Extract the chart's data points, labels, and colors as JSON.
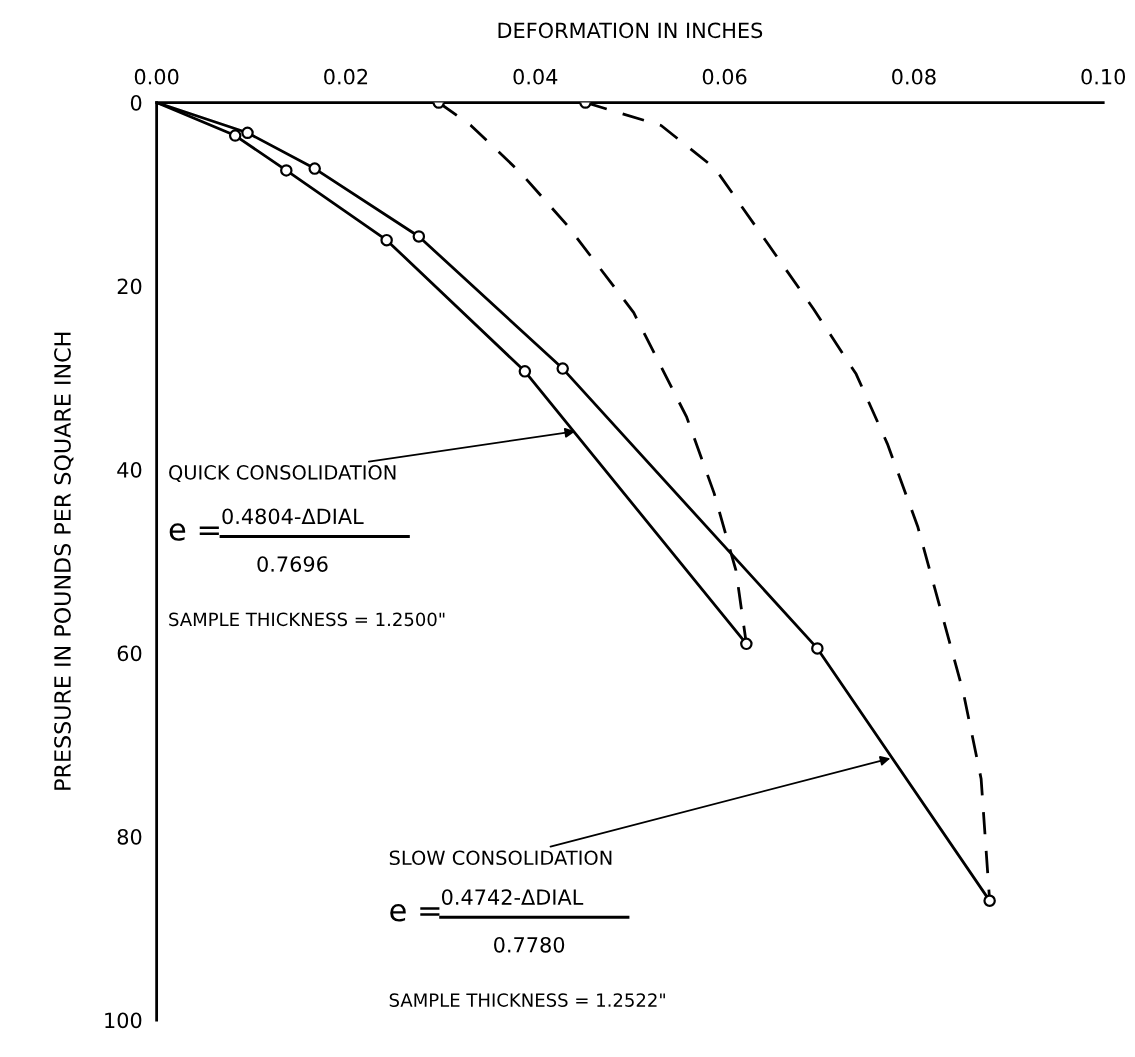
{
  "chart_data": {
    "type": "line",
    "xlabel": "DEFORMATION IN INCHES",
    "ylabel": "PRESSURE IN POUNDS PER SQUARE INCH",
    "xlim": [
      0,
      0.1
    ],
    "ylim": [
      100,
      0
    ],
    "xticks": [
      {
        "value": 0,
        "label": "0.00"
      },
      {
        "value": 0.02,
        "label": "0.02"
      },
      {
        "value": 0.04,
        "label": "0.04"
      },
      {
        "value": 0.06,
        "label": "0.06"
      },
      {
        "value": 0.08,
        "label": "0.08"
      },
      {
        "value": 0.1,
        "label": "0.10"
      }
    ],
    "yticks": [
      0,
      20,
      40,
      60,
      80,
      100
    ],
    "grid": false,
    "legend": false,
    "series": [
      {
        "color": "#000000",
        "line_style": "solid",
        "marker": "none",
        "x": [
          0,
          0.0083,
          0.0137,
          0.0243,
          0.0389,
          0.0623
        ],
        "values": [
          0,
          3.6,
          7.4,
          15.0,
          29.3,
          59
        ]
      },
      {
        "color": "#000000",
        "line_style": "solid",
        "marker": "none",
        "x": [
          0,
          0.0096,
          0.0167,
          0.0277,
          0.0429,
          0.0698,
          0.088
        ],
        "values": [
          0,
          3.3,
          7.2,
          14.6,
          29.0,
          59.5,
          87
        ]
      },
      {
        "color": "#000000",
        "line_style": "dashed",
        "marker": "none",
        "x": [
          0.0298,
          0.0332,
          0.0384,
          0.0434,
          0.0504,
          0.056,
          0.0589,
          0.0612,
          0.0623
        ],
        "values": [
          0,
          2.5,
          7.6,
          13.4,
          22.9,
          34.3,
          42.6,
          51,
          59
        ]
      },
      {
        "color": "#000000",
        "line_style": "dashed",
        "marker": "none",
        "x": [
          0.0453,
          0.0533,
          0.059,
          0.0694,
          0.0739,
          0.0772,
          0.0804,
          0.0827,
          0.0852,
          0.0871,
          0.088
        ],
        "values": [
          0,
          2.5,
          7.2,
          22.5,
          29.6,
          37.2,
          46.2,
          54.8,
          64.2,
          73.7,
          87
        ]
      },
      {
        "type": "scatter",
        "color": "#000000",
        "marker": "circle",
        "x": [
          0.0083,
          0.0137,
          0.0243,
          0.0389,
          0.0623,
          0.0096,
          0.0167,
          0.0277,
          0.0429,
          0.0698,
          0.088,
          0.0298,
          0.0453
        ],
        "values": [
          3.6,
          7.4,
          15.0,
          29.3,
          59,
          3.3,
          7.2,
          14.6,
          29.0,
          59.5,
          87,
          0,
          0
        ]
      }
    ],
    "annotations": [
      {
        "text": "QUICK CONSOLIDATION",
        "x": 0.0445,
        "y": 35.8
      },
      "e =",
      "0.4804-ΔDIAL",
      "0.7696",
      "SAMPLE THICKNESS = 1.2500\"",
      {
        "text": "SLOW CONSOLIDATION",
        "x": 0.0778,
        "y": 71.4
      },
      "e =",
      "0.4742-ΔDIAL",
      "0.7780",
      "SAMPLE THICKNESS = 1.2522\""
    ]
  }
}
